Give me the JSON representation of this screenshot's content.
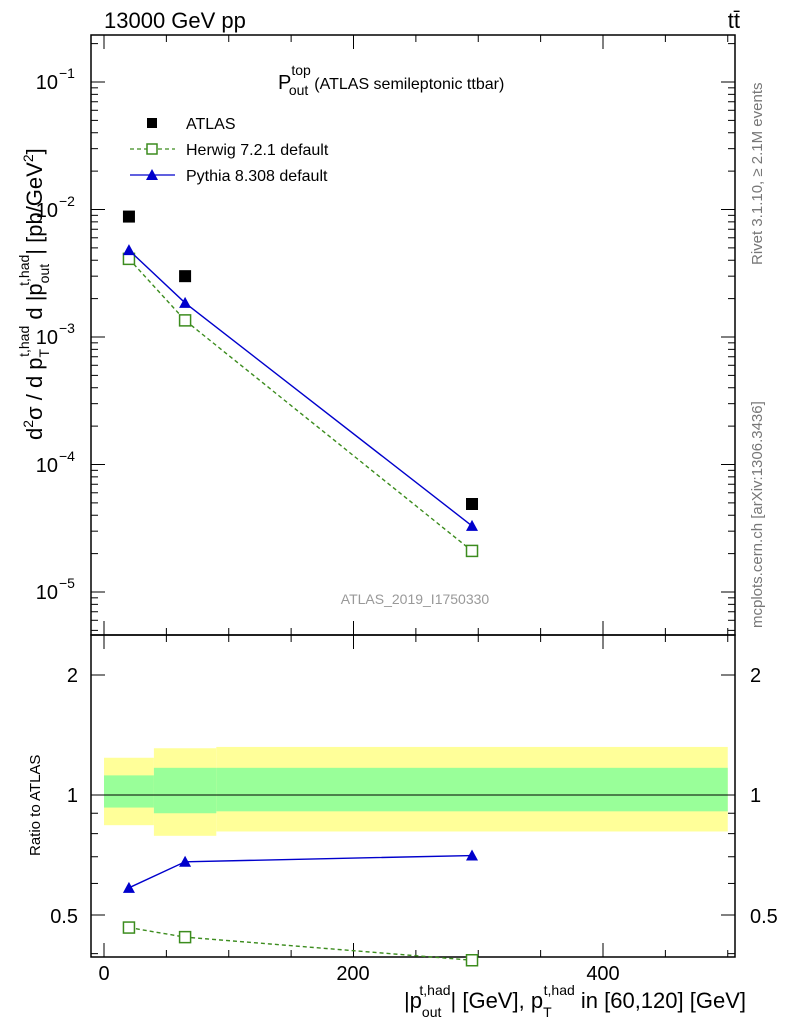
{
  "header": {
    "left": "13000 GeV pp",
    "right": "tt̄"
  },
  "main_title": {
    "symbol": "P",
    "sup": "top",
    "sub": "out",
    "text": "(ATLAS semileptonic ttbar)"
  },
  "side_labels": {
    "rivet": "Rivet 3.1.10, ≥ 2.1M events",
    "mcplots": "mcplots.cern.ch [arXiv:1306.3436]"
  },
  "analysis_id": "ATLAS_2019_I1750330",
  "axes": {
    "ylabel_top": "d²σ / d p_T^{t,had} d |p_out^{t,had}| [pb/GeV²]",
    "ylabel_ratio": "Ratio to ATLAS",
    "xlabel": "|p_out^{t,had}| [GeV], p_T^{t,had} in [60,120] [GeV]",
    "xticks": [
      "0",
      "200",
      "400"
    ],
    "yticks_top": [
      "10",
      "10",
      "10",
      "10",
      "10"
    ],
    "yticks_top_exp": [
      "−1",
      "−2",
      "−3",
      "−4",
      "−5"
    ],
    "yticks_ratio": [
      "2",
      "1",
      "0.5"
    ]
  },
  "chart_data": [
    {
      "type": "scatter",
      "panel": "main",
      "title": "P_out^top (ATLAS semileptonic ttbar)",
      "xlabel": "|p_out^{t,had}| [GeV], p_T^{t,had} in [60,120] [GeV]",
      "ylabel": "d²σ / d p_T^{t,had} d |p_out^{t,had}| [pb/GeV²]",
      "xlim": [
        -10,
        510
      ],
      "ylim": [
        4e-06,
        0.25
      ],
      "yscale": "log",
      "legend_position": "top-left",
      "series": [
        {
          "name": "ATLAS",
          "color": "#000000",
          "marker": "square",
          "x": [
            20,
            65,
            295
          ],
          "y": [
            0.0088,
            0.003,
            4.9e-05
          ]
        },
        {
          "name": "Herwig 7.2.1 default",
          "color": "#3c8c1e",
          "marker": "open-square",
          "line": "dashed",
          "x": [
            20,
            65,
            295
          ],
          "y": [
            0.0041,
            0.00135,
            2.1e-05
          ]
        },
        {
          "name": "Pythia 8.308 default",
          "color": "#0000cc",
          "marker": "triangle",
          "line": "solid",
          "x": [
            20,
            65,
            295
          ],
          "y": [
            0.0048,
            0.00185,
            3.3e-05
          ]
        }
      ]
    },
    {
      "type": "line",
      "panel": "ratio",
      "ylabel": "Ratio to ATLAS",
      "xlim": [
        -10,
        510
      ],
      "ylim": [
        0.35,
        2.4
      ],
      "yscale": "log",
      "bands": [
        {
          "name": "outer",
          "color": "#ffff99",
          "bins": [
            [
              0,
              40,
              0.84,
              1.24
            ],
            [
              40,
              90,
              0.79,
              1.31
            ],
            [
              90,
              500,
              0.81,
              1.32
            ]
          ]
        },
        {
          "name": "inner",
          "color": "#99ff99",
          "bins": [
            [
              0,
              40,
              0.93,
              1.12
            ],
            [
              40,
              90,
              0.9,
              1.17
            ],
            [
              90,
              500,
              0.91,
              1.17
            ]
          ]
        }
      ],
      "reference": 1,
      "series": [
        {
          "name": "Herwig 7.2.1 default",
          "color": "#3c8c1e",
          "marker": "open-square",
          "line": "dashed",
          "x": [
            20,
            65,
            295
          ],
          "y": [
            0.465,
            0.44,
            0.385
          ]
        },
        {
          "name": "Pythia 8.308 default",
          "color": "#0000cc",
          "marker": "triangle",
          "line": "solid",
          "x": [
            20,
            65,
            295
          ],
          "y": [
            0.585,
            0.68,
            0.705
          ]
        }
      ]
    }
  ]
}
